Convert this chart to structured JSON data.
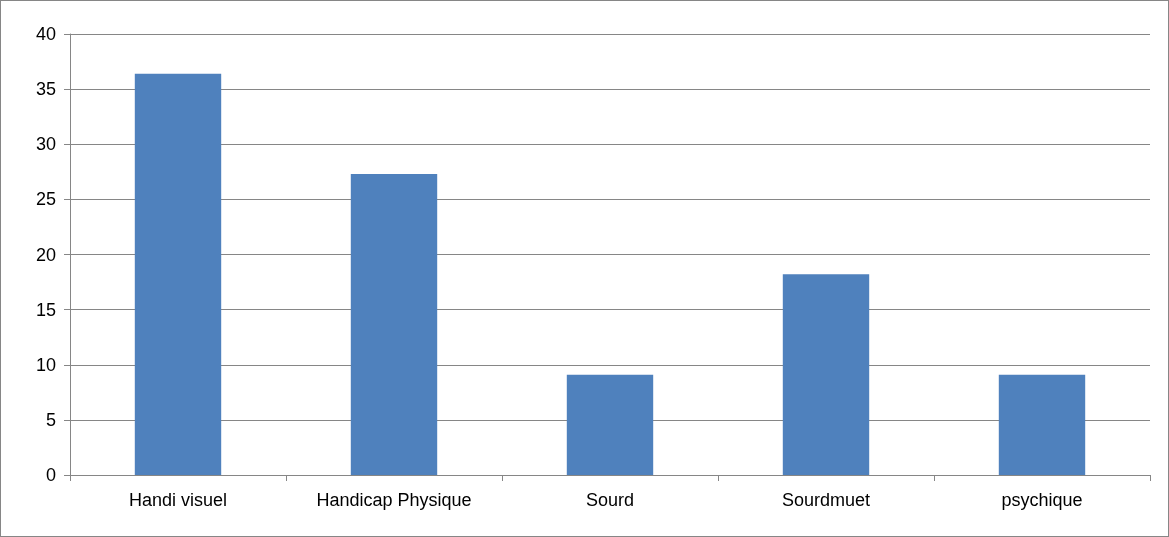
{
  "chart_data": {
    "type": "bar",
    "categories": [
      "Handi visuel",
      "Handicap Physique",
      "Sourd",
      "Sourdmuet",
      "psychique"
    ],
    "values": [
      36.4,
      27.3,
      9.1,
      18.2,
      9.1
    ],
    "color": "#4f81bd",
    "ylim": [
      0,
      40
    ],
    "yticks": [
      0,
      5,
      10,
      15,
      20,
      25,
      30,
      35,
      40
    ],
    "grid": "y"
  }
}
